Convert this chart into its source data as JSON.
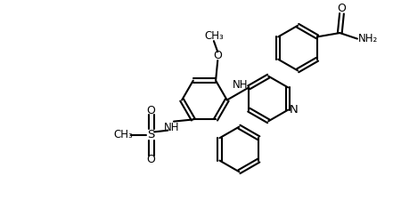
{
  "bg_color": "#ffffff",
  "line_color": "#000000",
  "line_width": 1.5,
  "font_size": 9,
  "figsize": [
    4.41,
    2.52
  ],
  "dpi": 100,
  "xlim": [
    0,
    10
  ],
  "ylim": [
    0,
    5.7
  ]
}
